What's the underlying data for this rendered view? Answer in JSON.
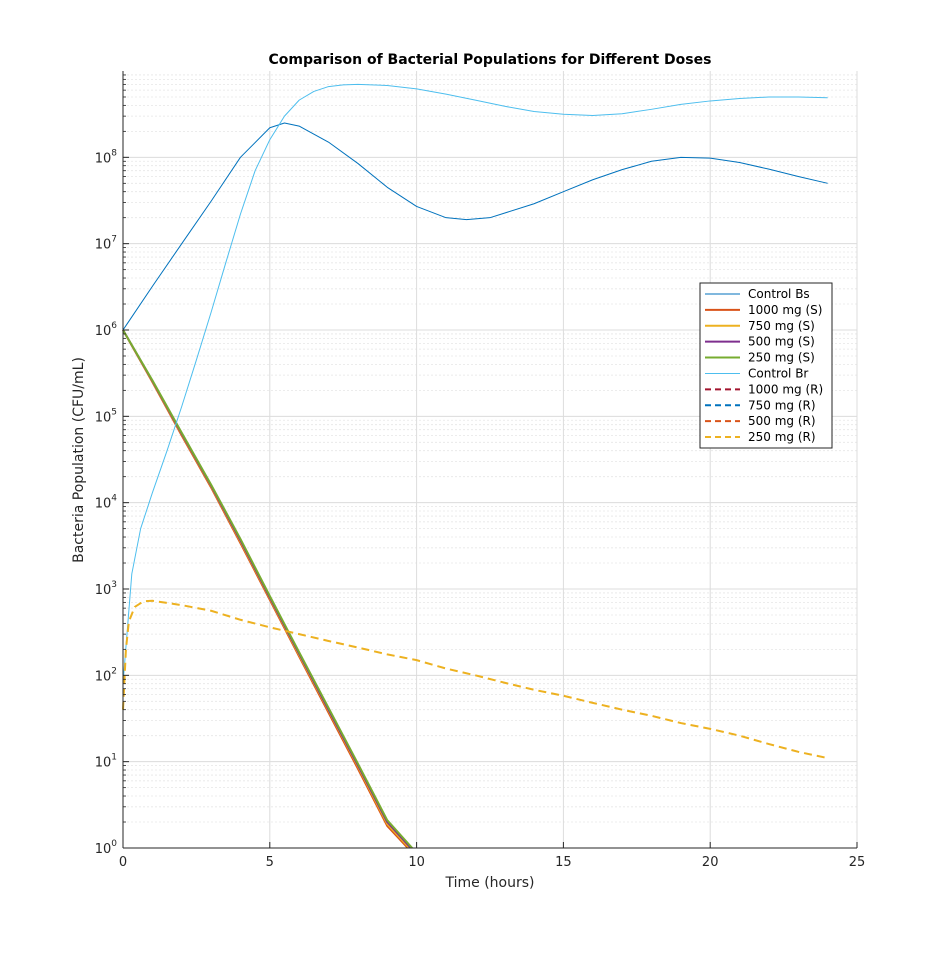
{
  "chart_data": {
    "type": "line",
    "title": "Comparison of Bacterial Populations for Different Doses",
    "xlabel": "Time (hours)",
    "ylabel": "Bacteria Population (CFU/mL)",
    "xlim": [
      0,
      25
    ],
    "ylim": [
      1,
      1000000000
    ],
    "y_scale": "log",
    "grid": true,
    "minor_grid": true,
    "legend_position": "right",
    "x_ticks": [
      "0",
      "5",
      "10",
      "15",
      "20",
      "25"
    ],
    "y_ticks": [
      {
        "base": "10",
        "exp": "0"
      },
      {
        "base": "10",
        "exp": "1"
      },
      {
        "base": "10",
        "exp": "2"
      },
      {
        "base": "10",
        "exp": "3"
      },
      {
        "base": "10",
        "exp": "4"
      },
      {
        "base": "10",
        "exp": "5"
      },
      {
        "base": "10",
        "exp": "6"
      },
      {
        "base": "10",
        "exp": "7"
      },
      {
        "base": "10",
        "exp": "8"
      }
    ],
    "series": [
      {
        "name": "Control Bs",
        "color": "#0072BD",
        "dash": false,
        "width": 1,
        "x": [
          0,
          1,
          2,
          3,
          4,
          5,
          5.5,
          6,
          7,
          8,
          9,
          10,
          11,
          11.7,
          12.5,
          14,
          15,
          16,
          17,
          18,
          19,
          20,
          21,
          22,
          23,
          24
        ],
        "y": [
          1000000,
          3200000,
          10000000,
          31000000,
          100000000,
          220000000,
          250000000,
          230000000,
          150000000,
          85000000,
          45000000,
          27000000,
          20000000,
          19000000,
          20000000,
          29000000,
          40000000,
          55000000,
          72000000,
          90000000,
          100000000,
          98000000,
          87000000,
          73000000,
          60000000,
          50000000
        ]
      },
      {
        "name": "1000 mg (S)",
        "color": "#D95319",
        "dash": false,
        "width": 2,
        "x": [
          0,
          1,
          2,
          3,
          4,
          5,
          6,
          7,
          8,
          9,
          9.7
        ],
        "y": [
          1000000,
          250000,
          60000,
          15000,
          3400,
          750,
          165,
          37,
          8.3,
          1.8,
          1
        ]
      },
      {
        "name": "750 mg (S)",
        "color": "#EDB120",
        "dash": false,
        "width": 2,
        "x": [
          0,
          1,
          2,
          3,
          4,
          5,
          6,
          7,
          8,
          9,
          9.75
        ],
        "y": [
          1000000,
          255000,
          62000,
          15500,
          3550,
          780,
          172,
          39,
          8.8,
          1.9,
          1
        ]
      },
      {
        "name": "500 mg (S)",
        "color": "#7E2F8E",
        "dash": false,
        "width": 2,
        "x": [
          0,
          1,
          2,
          3,
          4,
          5,
          6,
          7,
          8,
          9,
          9.8
        ],
        "y": [
          1000000,
          258000,
          63000,
          15800,
          3650,
          800,
          178,
          40,
          9.1,
          2.0,
          1
        ]
      },
      {
        "name": "250 mg (S)",
        "color": "#77AC30",
        "dash": false,
        "width": 2,
        "x": [
          0,
          1,
          2,
          3,
          4,
          5,
          6,
          7,
          8,
          9,
          9.85
        ],
        "y": [
          1000000,
          262000,
          64500,
          16200,
          3800,
          830,
          185,
          42,
          9.5,
          2.1,
          1
        ]
      },
      {
        "name": "Control Br",
        "color": "#4DBEEE",
        "dash": false,
        "width": 1,
        "x": [
          0,
          0.3,
          0.6,
          1,
          1.5,
          2,
          2.5,
          3,
          3.5,
          4,
          4.5,
          5,
          5.5,
          6,
          6.5,
          7,
          7.5,
          8,
          9,
          10,
          11,
          12,
          13,
          14,
          15,
          16,
          17,
          18,
          19,
          20,
          21,
          22,
          23,
          24
        ],
        "y": [
          80,
          1500,
          5000,
          13000,
          40000,
          130000,
          450000,
          1600000,
          6000000,
          22000000,
          70000000,
          160000000,
          300000000,
          460000000,
          580000000,
          660000000,
          690000000,
          700000000,
          680000000,
          620000000,
          540000000,
          460000000,
          390000000,
          340000000,
          315000000,
          305000000,
          320000000,
          360000000,
          410000000,
          450000000,
          480000000,
          500000000,
          500000000,
          490000000
        ]
      },
      {
        "name": "1000 mg (R)",
        "color": "#A2142F",
        "dash": true,
        "width": 2,
        "x": [],
        "y": []
      },
      {
        "name": "750 mg (R)",
        "color": "#0072BD",
        "dash": true,
        "width": 2,
        "x": [],
        "y": []
      },
      {
        "name": "500 mg (R)",
        "color": "#D95319",
        "dash": true,
        "width": 2,
        "x": [],
        "y": []
      },
      {
        "name": "250 mg (R)",
        "color": "#EDB120",
        "dash": true,
        "width": 2,
        "x": [
          0,
          0.1,
          0.2,
          0.4,
          0.7,
          1,
          1.5,
          2,
          3,
          4,
          5,
          6,
          7,
          8,
          9,
          10,
          11,
          12,
          13,
          14,
          15,
          16,
          17,
          18,
          19,
          20,
          21,
          22,
          23,
          24
        ],
        "y": [
          40,
          200,
          420,
          620,
          720,
          730,
          690,
          650,
          560,
          440,
          360,
          300,
          250,
          210,
          175,
          150,
          120,
          100,
          82,
          68,
          58,
          48,
          40,
          34,
          28,
          24,
          20,
          16,
          13,
          11
        ]
      }
    ]
  }
}
